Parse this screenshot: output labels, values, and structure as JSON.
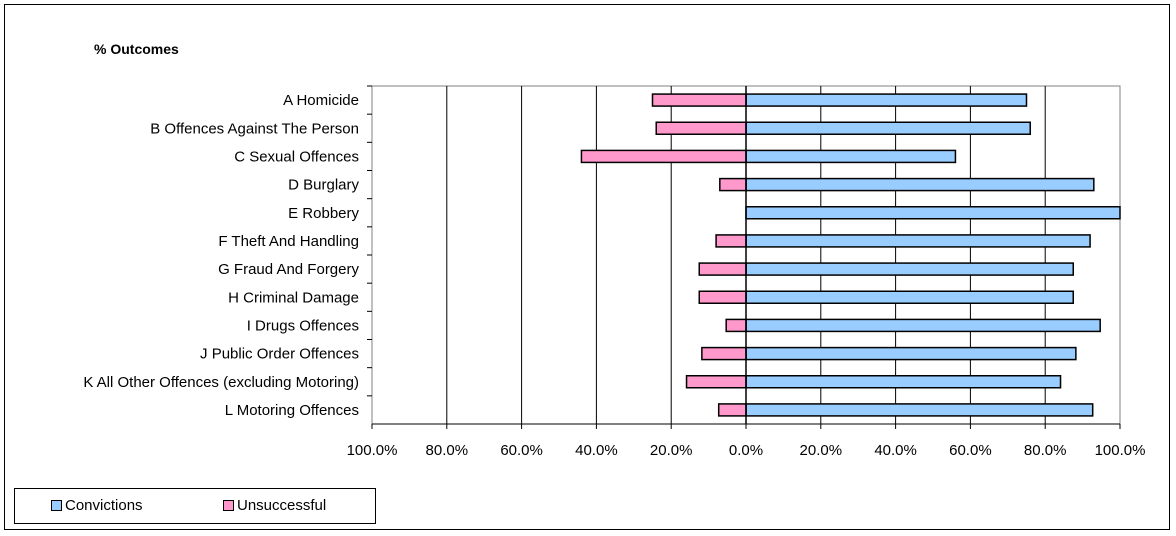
{
  "chart_data": {
    "type": "bar",
    "orientation": "horizontal",
    "title": "% Outcomes",
    "categories": [
      "A Homicide",
      "B Offences Against The Person",
      "C Sexual Offences",
      "D Burglary",
      "E Robbery",
      "F Theft And Handling",
      "G Fraud And Forgery",
      "H Criminal Damage",
      "I Drugs Offences",
      "J Public Order Offences",
      "K All Other Offences (excluding Motoring)",
      "L Motoring Offences"
    ],
    "series": [
      {
        "name": "Convictions",
        "color": "#99ccff",
        "values": [
          75.0,
          76.0,
          56.0,
          93.0,
          100.0,
          92.0,
          87.5,
          87.5,
          94.7,
          88.2,
          84.1,
          92.7
        ]
      },
      {
        "name": "Unsuccessful",
        "color": "#ff99cc",
        "values": [
          25.0,
          24.0,
          44.0,
          7.0,
          0.0,
          8.0,
          12.5,
          12.5,
          5.3,
          11.8,
          15.9,
          7.3
        ]
      }
    ],
    "xlim": [
      -100,
      100
    ],
    "xticks": [
      "100.0%",
      "80.0%",
      "60.0%",
      "40.0%",
      "20.0%",
      "0.0%",
      "20.0%",
      "40.0%",
      "60.0%",
      "80.0%",
      "100.0%"
    ],
    "grid": "vertical",
    "legend": "bottom-left"
  }
}
